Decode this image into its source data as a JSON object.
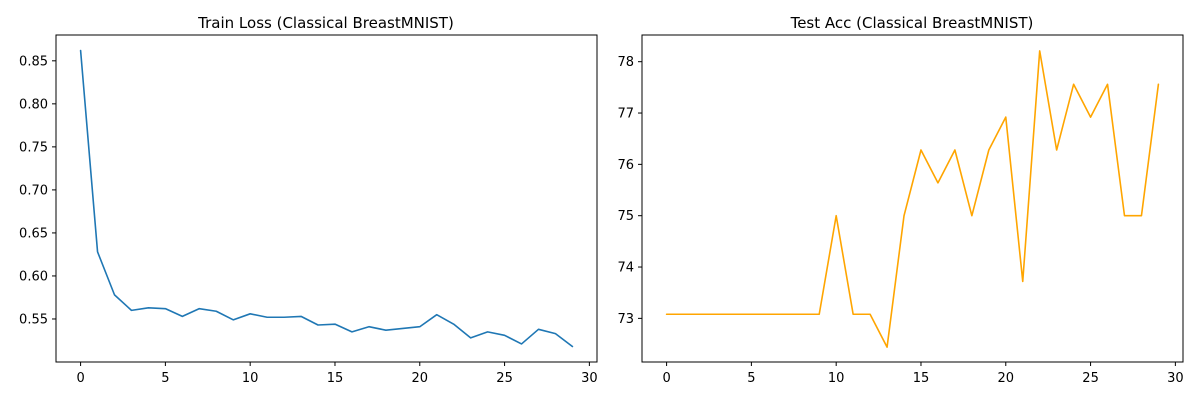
{
  "chart_data": [
    {
      "type": "line",
      "title": "Train Loss (Classical BreastMNIST)",
      "xlabel": "",
      "ylabel": "",
      "color": "#1f77b4",
      "xlim": [
        -1.45,
        30.45
      ],
      "ylim": [
        0.5,
        0.88
      ],
      "xticks": [
        0,
        5,
        10,
        15,
        20,
        25,
        30
      ],
      "yticks": [
        0.55,
        0.6,
        0.65,
        0.7,
        0.75,
        0.8,
        0.85
      ],
      "ytick_labels": [
        "0.55",
        "0.60",
        "0.65",
        "0.70",
        "0.75",
        "0.80",
        "0.85"
      ],
      "grid": false,
      "x": [
        0,
        1,
        2,
        3,
        4,
        5,
        6,
        7,
        8,
        9,
        10,
        11,
        12,
        13,
        14,
        15,
        16,
        17,
        18,
        19,
        20,
        21,
        22,
        23,
        24,
        25,
        26,
        27,
        28,
        29
      ],
      "values": [
        0.862,
        0.628,
        0.578,
        0.56,
        0.563,
        0.562,
        0.553,
        0.562,
        0.559,
        0.549,
        0.556,
        0.552,
        0.552,
        0.553,
        0.543,
        0.544,
        0.535,
        0.541,
        0.537,
        0.539,
        0.541,
        0.555,
        0.544,
        0.528,
        0.535,
        0.531,
        0.521,
        0.538,
        0.533,
        0.518
      ]
    },
    {
      "type": "line",
      "title": "Test Acc (Classical BreastMNIST)",
      "xlabel": "",
      "ylabel": "",
      "color": "#ffa500",
      "xlim": [
        -1.45,
        30.45
      ],
      "ylim": [
        72.15,
        78.52
      ],
      "xticks": [
        0,
        5,
        10,
        15,
        20,
        25,
        30
      ],
      "yticks": [
        73,
        74,
        75,
        76,
        77,
        78
      ],
      "ytick_labels": [
        "73",
        "74",
        "75",
        "76",
        "77",
        "78"
      ],
      "grid": false,
      "x": [
        0,
        1,
        2,
        3,
        4,
        5,
        6,
        7,
        8,
        9,
        10,
        11,
        12,
        13,
        14,
        15,
        16,
        17,
        18,
        19,
        20,
        21,
        22,
        23,
        24,
        25,
        26,
        27,
        28,
        29
      ],
      "values": [
        73.08,
        73.08,
        73.08,
        73.08,
        73.08,
        73.08,
        73.08,
        73.08,
        73.08,
        73.08,
        75.0,
        73.08,
        73.08,
        72.44,
        75.0,
        76.28,
        75.64,
        76.28,
        75.0,
        76.28,
        76.92,
        73.72,
        78.21,
        76.28,
        77.56,
        76.92,
        77.56,
        75.0,
        75.0,
        77.56
      ]
    }
  ]
}
